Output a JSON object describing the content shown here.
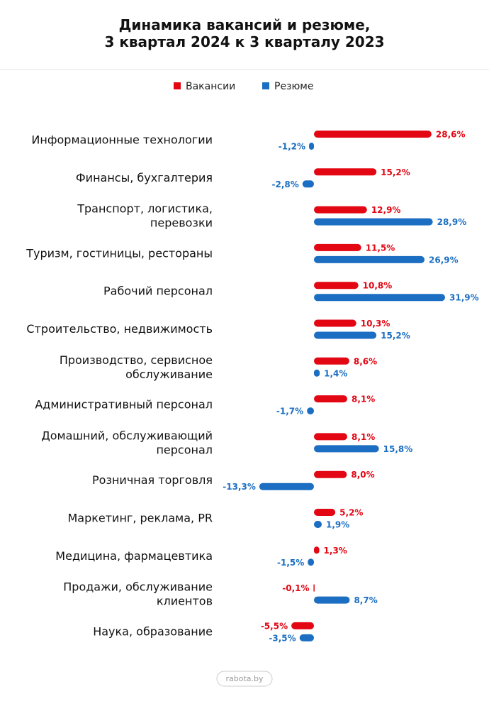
{
  "chart_data": {
    "type": "bar",
    "orientation": "horizontal",
    "title": "Динамика вакансий и резюме,\n3 квартал 2024 к 3 кварталу 2023",
    "categories": [
      "Информационные технологии",
      "Финансы, бухгалтерия",
      "Транспорт, логистика,\nперевозки",
      "Туризм, гостиницы, рестораны",
      "Рабочий персонал",
      "Строительство, недвижимость",
      "Производство, сервисное\nобслуживание",
      "Административный персонал",
      "Домашний, обслуживающий\nперсонал",
      "Розничная торговля",
      "Маркетинг, реклама, PR",
      "Медицина, фармацевтика",
      "Продажи, обслуживание\nклиентов",
      "Наука, образование"
    ],
    "series": [
      {
        "name": "Вакансии",
        "color": "#e30613",
        "values": [
          28.6,
          15.2,
          12.9,
          11.5,
          10.8,
          10.3,
          8.6,
          8.1,
          8.1,
          8.0,
          5.2,
          1.3,
          -0.1,
          -5.5
        ],
        "value_labels": [
          "28,6%",
          "15,2%",
          "12,9%",
          "11,5%",
          "10,8%",
          "10,3%",
          "8,6%",
          "8,1%",
          "8,1%",
          "8,0%",
          "5,2%",
          "1,3%",
          "-0,1%",
          "-5,5%"
        ]
      },
      {
        "name": "Резюме",
        "color": "#1b6ec2",
        "values": [
          -1.2,
          -2.8,
          28.9,
          26.9,
          31.9,
          15.2,
          1.4,
          -1.7,
          15.8,
          -13.3,
          1.9,
          -1.5,
          8.7,
          -3.5
        ],
        "value_labels": [
          "-1,2%",
          "-2,8%",
          "28,9%",
          "26,9%",
          "31,9%",
          "15,2%",
          "1,4%",
          "-1,7%",
          "15,8%",
          "-13,3%",
          "1,9%",
          "-1,5%",
          "8,7%",
          "-3,5%"
        ]
      }
    ],
    "source": "rabota.by"
  }
}
